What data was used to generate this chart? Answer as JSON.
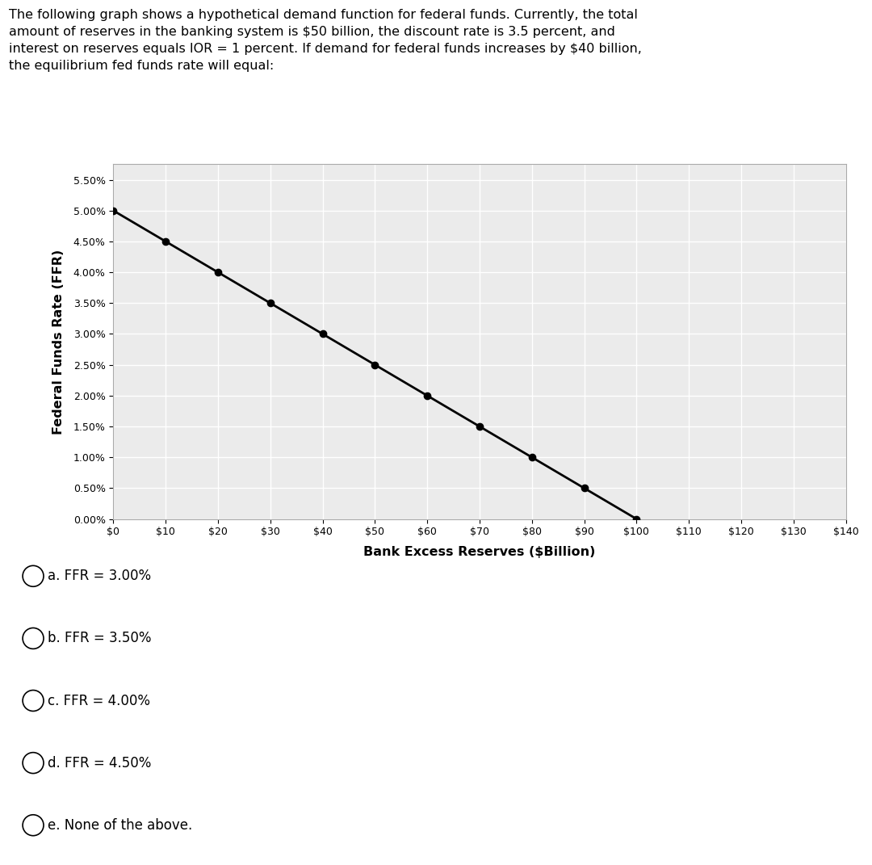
{
  "title_text": "The following graph shows a hypothetical demand function for federal funds. Currently, the total\namount of reserves in the banking system is $50 billion, the discount rate is 3.5 percent, and\ninterest on reserves equals IOR = 1 percent. If demand for federal funds increases by $40 billion,\nthe equilibrium fed funds rate will equal:",
  "xlabel": "Bank Excess Reserves ($Billion)",
  "ylabel": "Federal Funds Rate (FFR)",
  "x_data": [
    0,
    10,
    20,
    30,
    40,
    50,
    60,
    70,
    80,
    90,
    100
  ],
  "y_data": [
    5.0,
    4.5,
    4.0,
    3.5,
    3.0,
    2.5,
    2.0,
    1.5,
    1.0,
    0.5,
    0.0
  ],
  "x_ticks": [
    0,
    10,
    20,
    30,
    40,
    50,
    60,
    70,
    80,
    90,
    100,
    110,
    120,
    130,
    140
  ],
  "x_tick_labels": [
    "$0",
    "$10",
    "$20",
    "$30",
    "$40",
    "$50",
    "$60",
    "$70",
    "$80",
    "$90",
    "$100",
    "$110",
    "$120",
    "$130",
    "$140"
  ],
  "y_ticks": [
    0.0,
    0.5,
    1.0,
    1.5,
    2.0,
    2.5,
    3.0,
    3.5,
    4.0,
    4.5,
    5.0,
    5.5
  ],
  "y_tick_labels": [
    "0.00%",
    "0.50%",
    "1.00%",
    "1.50%",
    "2.00%",
    "2.50%",
    "3.00%",
    "3.50%",
    "4.00%",
    "4.50%",
    "5.00%",
    "5.50%"
  ],
  "xlim": [
    0,
    140
  ],
  "ylim": [
    0.0,
    5.75
  ],
  "line_color": "#000000",
  "marker_color": "#000000",
  "marker_size": 6,
  "line_width": 2.0,
  "bg_color": "#ffffff",
  "plot_bg_color": "#ebebeb",
  "grid_color": "#ffffff",
  "choices": [
    "a. FFR = 3.00%",
    "b. FFR = 3.50%",
    "c. FFR = 4.00%",
    "d. FFR = 4.50%",
    "e. None of the above."
  ],
  "title_fontsize": 11.5,
  "axis_label_fontsize": 11.5,
  "tick_fontsize": 9,
  "choices_fontsize": 12,
  "separator_color": "#cccccc"
}
